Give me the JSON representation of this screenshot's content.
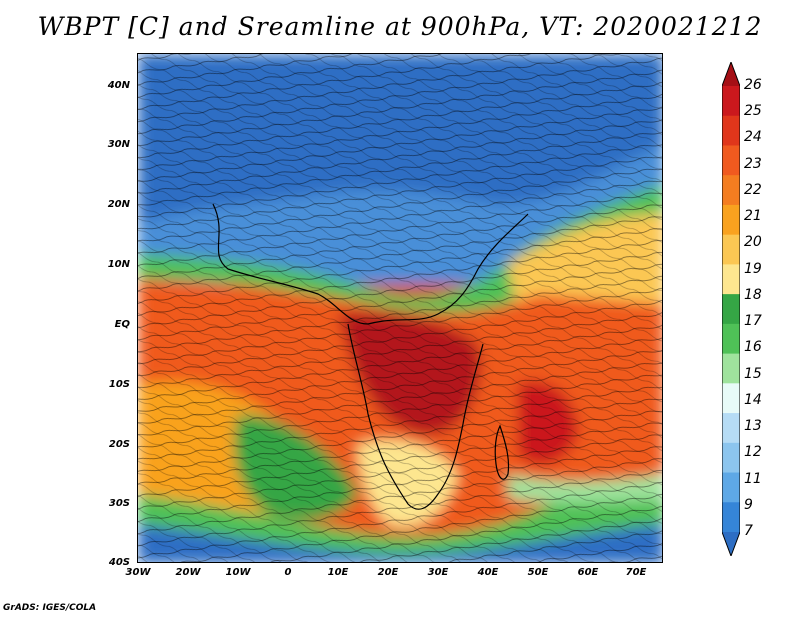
{
  "title": "WBPT [C] and Sreamline at 900hPa, VT: 2020021212",
  "footer": "GrADS: IGES/COLA",
  "map": {
    "lat_labels": [
      "40N",
      "30N",
      "20N",
      "10N",
      "EQ",
      "10S",
      "20S",
      "30S",
      "40S"
    ],
    "lon_labels": [
      "30W",
      "20W",
      "10W",
      "0",
      "10E",
      "20E",
      "30E",
      "40E",
      "50E",
      "60E",
      "70E"
    ],
    "lat_range": [
      -40,
      45
    ],
    "lon_range": [
      -30,
      75
    ]
  },
  "colorbar": {
    "levels": [
      "26",
      "25",
      "24",
      "23",
      "22",
      "21",
      "20",
      "19",
      "18",
      "17",
      "16",
      "15",
      "14",
      "13",
      "12",
      "11",
      "9",
      "7"
    ],
    "colors": [
      "#a50f15",
      "#cb181d",
      "#e0361b",
      "#f05a1f",
      "#f47d20",
      "#f9a21f",
      "#fbc753",
      "#fde68f",
      "#35a645",
      "#4fc157",
      "#9fe39d",
      "#e8fbf8",
      "#b6dcf5",
      "#8cc5ee",
      "#5ea8e6",
      "#3585d8",
      "#2d6ec4"
    ]
  }
}
